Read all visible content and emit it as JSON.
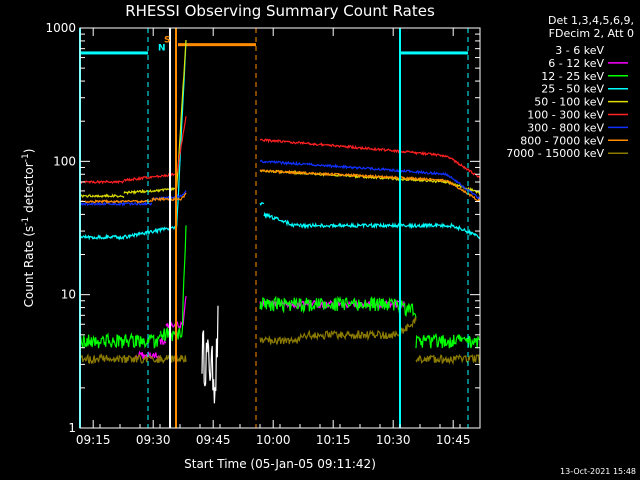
{
  "chart_data": {
    "type": "line",
    "title": "RHESSI Observing Summary Count Rates",
    "xlabel": "Start Time (05-Jan-05 09:11:42)",
    "ylabel_main": "Count Rate (s",
    "ylabel_sup1": "-1",
    "ylabel_mid": " detector",
    "ylabel_sup2": "-1",
    "ylabel_end": ")",
    "y_scale": "log",
    "ylim": [
      1,
      1000
    ],
    "x_unit": "minutes since 09:11:42",
    "xlim_minutes": [
      0,
      100
    ],
    "x_ticks": [
      {
        "minute": 3.3,
        "label": "09:15"
      },
      {
        "minute": 18.3,
        "label": "09:30"
      },
      {
        "minute": 33.3,
        "label": "09:45"
      },
      {
        "minute": 48.3,
        "label": "10:00"
      },
      {
        "minute": 63.3,
        "label": "10:15"
      },
      {
        "minute": 78.3,
        "label": "10:30"
      },
      {
        "minute": 93.3,
        "label": "10:45"
      }
    ],
    "y_ticks": [
      {
        "value": 1,
        "label": "1"
      },
      {
        "value": 10,
        "label": "10"
      },
      {
        "value": 100,
        "label": "100"
      },
      {
        "value": 1000,
        "label": "1000"
      }
    ],
    "legend_header": [
      "Det 1,3,4,5,6,9,",
      "FDecim 2, Att 0"
    ],
    "series": [
      {
        "name": "3 - 6 keV",
        "color": "#000000"
      },
      {
        "name": "6 - 12 keV",
        "color": "#ff00ff"
      },
      {
        "name": "12 - 25 keV",
        "color": "#00ff00"
      },
      {
        "name": "25 - 50 keV",
        "color": "#00ffff"
      },
      {
        "name": "50 - 100 keV",
        "color": "#dddd00"
      },
      {
        "name": "100 - 300 keV",
        "color": "#ff2020"
      },
      {
        "name": "300 - 800 keV",
        "color": "#1030ff"
      },
      {
        "name": "800 - 7000 keV",
        "color": "#ff8c00"
      },
      {
        "name": "7000 - 15000 keV",
        "color": "#8b7a00"
      }
    ],
    "profiles": [
      {
        "color": "#ffffff",
        "rank": 0,
        "noise": 0.45,
        "segs": [
          [
            30.5,
            34.5,
            4,
            2.5,
            6
          ]
        ]
      },
      {
        "color": "#ff00ff",
        "rank": 1,
        "noise": 0.06,
        "segs": [
          [
            14,
            20,
            3.5,
            3.5,
            3.5
          ],
          [
            20,
            21.5,
            4.5,
            4.5,
            4.5
          ],
          [
            21.5,
            26.5,
            6,
            6,
            10
          ],
          [
            45,
            81,
            8.5,
            8.5,
            8.5
          ]
        ]
      },
      {
        "color": "#00ff00",
        "rank": 2,
        "noise": 0.12,
        "segs": [
          [
            0,
            20,
            4.5,
            4.5,
            4.5
          ],
          [
            20,
            26.5,
            5,
            5,
            35
          ],
          [
            45,
            84,
            8.5,
            8.5,
            7.5
          ],
          [
            84,
            100,
            4.5,
            4.5,
            4.5
          ]
        ]
      },
      {
        "color": "#00ffff",
        "rank": 3,
        "noise": 0.03,
        "segs": [
          [
            0,
            11,
            27,
            27,
            27
          ],
          [
            11,
            26.5,
            27,
            32,
            800
          ],
          [
            45,
            46,
            48,
            48,
            48
          ],
          [
            46,
            55,
            40,
            33,
            33
          ],
          [
            55,
            100,
            33,
            33,
            27
          ]
        ]
      },
      {
        "color": "#dddd00",
        "rank": 4,
        "noise": 0.02,
        "segs": [
          [
            0,
            11,
            55,
            55,
            55
          ],
          [
            11,
            26.5,
            58,
            62,
            800
          ],
          [
            45,
            100,
            85,
            70,
            58
          ]
        ]
      },
      {
        "color": "#ff2020",
        "rank": 5,
        "noise": 0.02,
        "segs": [
          [
            0,
            11,
            70,
            70,
            70
          ],
          [
            11,
            26.5,
            72,
            80,
            220
          ],
          [
            45,
            100,
            145,
            110,
            75
          ]
        ]
      },
      {
        "color": "#1030ff",
        "rank": 6,
        "noise": 0.02,
        "segs": [
          [
            0,
            18,
            48,
            48,
            48
          ],
          [
            18,
            26.5,
            52,
            55,
            60
          ],
          [
            45,
            100,
            100,
            80,
            52
          ]
        ]
      },
      {
        "color": "#ff8c00",
        "rank": 7,
        "noise": 0.02,
        "segs": [
          [
            0,
            18,
            50,
            50,
            50
          ],
          [
            18,
            26.5,
            52,
            52,
            57
          ],
          [
            45,
            100,
            85,
            72,
            50
          ]
        ]
      },
      {
        "color": "#8b7a00",
        "rank": 8,
        "noise": 0.07,
        "segs": [
          [
            0,
            26.5,
            3.3,
            3.3,
            3.3
          ],
          [
            45,
            55,
            4.5,
            4.5,
            4.5
          ],
          [
            55,
            84,
            5,
            5,
            6.5
          ],
          [
            84,
            100,
            3.3,
            3.3,
            3.3
          ]
        ]
      }
    ],
    "state_bars": [
      {
        "color": "#00ffff",
        "from": 0,
        "to": 17,
        "value": 650
      },
      {
        "color": "#00ffff",
        "from": 80,
        "to": 97,
        "value": 650
      },
      {
        "color": "#ff8c00",
        "from": 24.5,
        "to": 44,
        "value": 750
      }
    ],
    "state_flags": [
      {
        "text": "S",
        "color": "#ff8c00",
        "minute": 21,
        "value": 780
      },
      {
        "text": "N",
        "color": "#00ffff",
        "minute": 19.5,
        "value": 680
      }
    ],
    "vertical_lines": [
      {
        "minute": 0,
        "color": "#00ffff",
        "style": "solid"
      },
      {
        "minute": 17,
        "color": "#00ffff",
        "style": "dashed"
      },
      {
        "minute": 22.5,
        "color": "#ffffff",
        "style": "solid"
      },
      {
        "minute": 24,
        "color": "#ff8c00",
        "style": "solid"
      },
      {
        "minute": 44,
        "color": "#ff8c00",
        "style": "dashed"
      },
      {
        "minute": 80,
        "color": "#00ffff",
        "style": "solid"
      },
      {
        "minute": 97,
        "color": "#00ffff",
        "style": "dashed"
      }
    ],
    "timestamp": "13-Oct-2021 15:48"
  }
}
